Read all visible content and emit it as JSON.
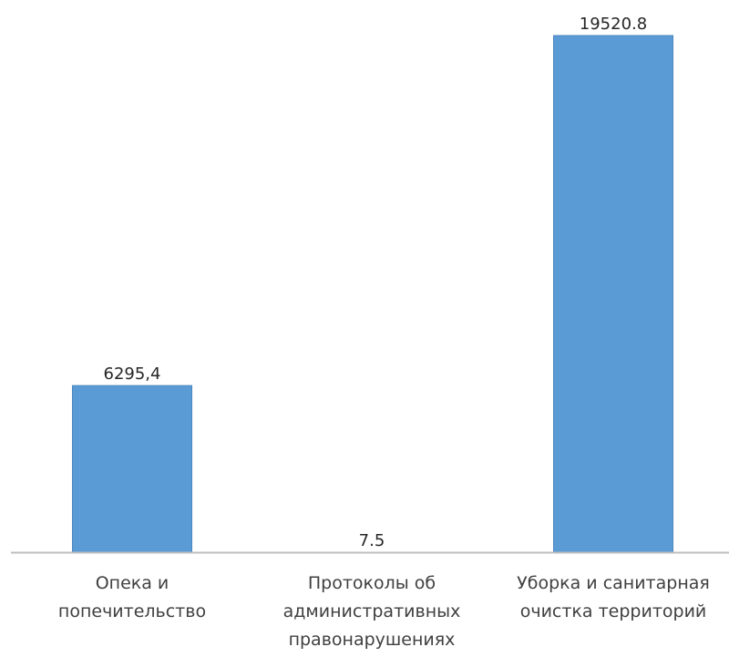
{
  "chart_data": {
    "type": "bar",
    "categories": [
      [
        "Опека и",
        "попечительство"
      ],
      [
        "Протоколы об",
        "административных",
        "правонарушениях"
      ],
      [
        "Уборка и санитарная",
        "очистка территорий"
      ]
    ],
    "values": [
      6295.4,
      7.5,
      19520.8
    ],
    "data_labels": [
      "6295,4",
      "7.5",
      "19520.8"
    ],
    "title": "",
    "xlabel": "",
    "ylabel": "",
    "ylim": [
      0,
      19520.8
    ],
    "grid": false,
    "legend": "none",
    "colors": {
      "bar_fill": "#5b9bd5",
      "bar_stroke": "#4a86bd",
      "axis": "#bfbfbf",
      "value_text": "#262626",
      "category_text": "#404040"
    }
  }
}
